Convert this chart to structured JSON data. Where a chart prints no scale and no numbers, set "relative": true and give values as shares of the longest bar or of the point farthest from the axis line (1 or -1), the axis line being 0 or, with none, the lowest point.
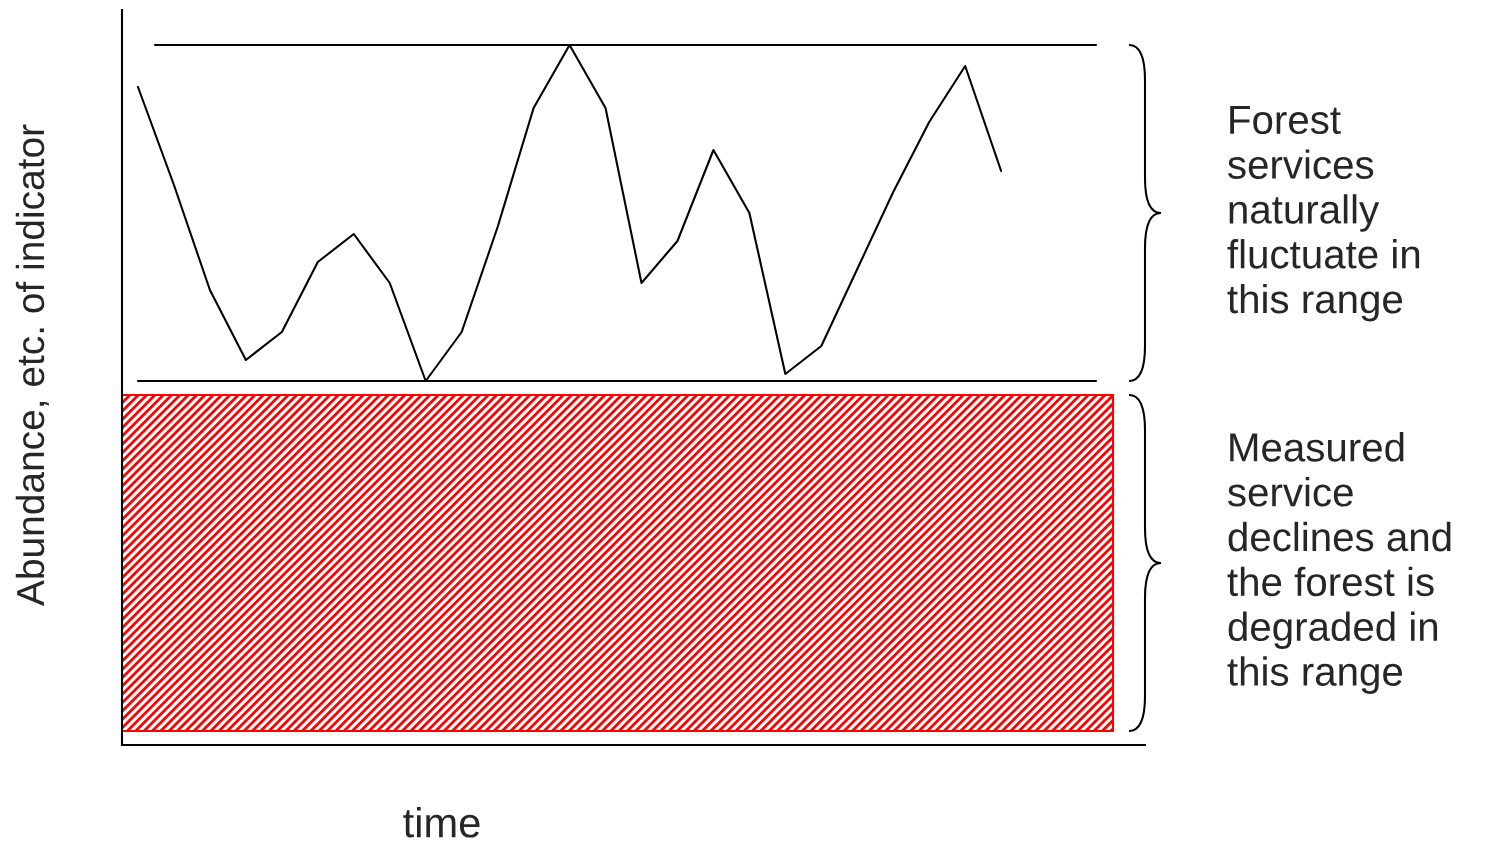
{
  "chart_data": {
    "type": "line",
    "relative": true,
    "xlabel": "time",
    "ylabel": "Abundance, etc. of indicator",
    "categories": [
      null,
      null,
      null,
      null,
      null,
      null,
      null,
      null,
      null,
      null,
      null,
      null,
      null,
      null,
      null,
      null,
      null,
      null,
      null,
      null,
      null,
      null,
      null,
      null,
      null
    ],
    "series": [
      {
        "color": "#000000",
        "values": [
          0.94,
          0.8,
          0.65,
          0.55,
          0.59,
          0.69,
          0.73,
          0.66,
          0.52,
          0.59,
          0.74,
          0.91,
          1.0,
          0.91,
          0.66,
          0.72,
          0.85,
          0.76,
          0.53,
          0.57,
          0.68,
          0.79,
          0.89,
          0.97,
          0.82
        ]
      }
    ],
    "ref_lines": [
      {
        "axis": "y",
        "value": 0.52
      },
      {
        "axis": "y",
        "value": 1.0
      }
    ],
    "annotations": [
      "Forest\nservices\nnaturally\nfluctuate in\nthis range"
    ],
    "bands": [
      {
        "axis": "y",
        "from": 0.02,
        "to": 0.5,
        "color": "#ff0000",
        "label": "Measured\nservice\ndeclines and\nthe forest is\ndegraded in\nthis range"
      }
    ]
  }
}
